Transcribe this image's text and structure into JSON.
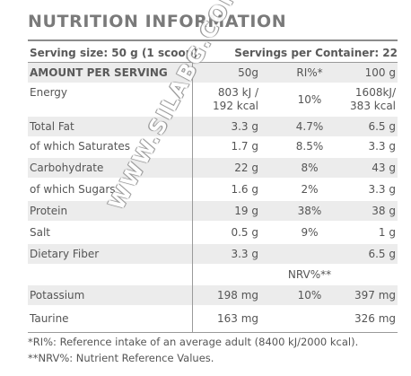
{
  "title": "NUTRITION INFORMATION",
  "serving_size": "Serving size: 50 g (1 scoop)",
  "servings_per_container": "Servings per Container: 22",
  "header": {
    "label": "AMOUNT PER SERVING",
    "col1": "50g",
    "col2": "RI%*",
    "col3": "100 g"
  },
  "rows": [
    {
      "label": "Energy",
      "per_serving": [
        "803 kJ /",
        "192 kcal"
      ],
      "ri": "10%",
      "per_100g": [
        "1608kJ/",
        "383 kcal"
      ]
    },
    {
      "label": "Total Fat",
      "per_serving": "3.3 g",
      "ri": "4.7%",
      "per_100g": "6.5 g"
    },
    {
      "label": "of which Saturates",
      "per_serving": "1.7 g",
      "ri": "8.5%",
      "per_100g": "3.3 g"
    },
    {
      "label": "Carbohydrate",
      "per_serving": "22 g",
      "ri": "8%",
      "per_100g": "43 g"
    },
    {
      "label": "of which Sugars",
      "per_serving": "1.6 g",
      "ri": "2%",
      "per_100g": "3.3 g"
    },
    {
      "label": "Protein",
      "per_serving": "19 g",
      "ri": "38%",
      "per_100g": "38 g"
    },
    {
      "label": "Salt",
      "per_serving": "0.5 g",
      "ri": "9%",
      "per_100g": "1 g"
    },
    {
      "label": "Dietary Fiber",
      "per_serving": "3.3 g",
      "ri": "",
      "per_100g": "6.5 g"
    },
    {
      "label": "",
      "per_serving": "",
      "ri": "NRV%**",
      "per_100g": ""
    },
    {
      "label": "Potassium",
      "per_serving": "198 mg",
      "ri": "10%",
      "per_100g": "397 mg"
    },
    {
      "label": "Taurine",
      "per_serving": "163 mg",
      "ri": "",
      "per_100g": "326 mg"
    }
  ],
  "footnotes": [
    "*RI%: Reference intake of an average adult (8400 kJ/2000 kcal).",
    "**NRV%: Nutrient Reference Values."
  ],
  "watermark": "WWW.SILABG.COM"
}
